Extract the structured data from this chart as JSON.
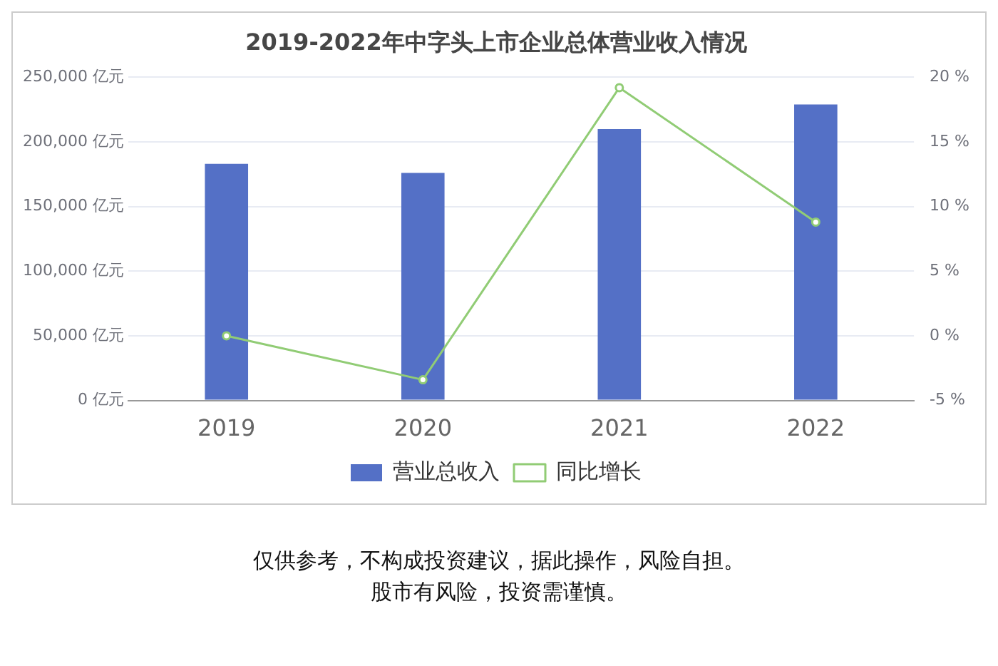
{
  "chart_data": {
    "type": "bar",
    "title": "2019-2022年中字头上市企业总体营业收入情况",
    "categories": [
      "2019",
      "2020",
      "2021",
      "2022"
    ],
    "series": [
      {
        "name": "营业总收入",
        "color": "#5470c6",
        "values": [
          183000,
          176000,
          210000,
          229000
        ]
      },
      {
        "name": "同比增长",
        "type": "line",
        "axis": "y2",
        "color": "#91cc75",
        "marker": "circle",
        "values": [
          0,
          -3.4,
          19.2,
          8.8
        ]
      }
    ],
    "ylim": [
      0,
      250000
    ],
    "yticks": [
      {
        "value": 0,
        "label": "0 亿元"
      },
      {
        "value": 50000,
        "label": "50,000 亿元"
      },
      {
        "value": 100000,
        "label": "100,000 亿元"
      },
      {
        "value": 150000,
        "label": "150,000 亿元"
      },
      {
        "value": 200000,
        "label": "200,000 亿元"
      },
      {
        "value": 250000,
        "label": "250,000 亿元"
      }
    ],
    "y2lim": [
      -5,
      20
    ],
    "y2ticks": [
      {
        "value": -5,
        "label": "-5 %"
      },
      {
        "value": 0,
        "label": "0 %"
      },
      {
        "value": 5,
        "label": "5 %"
      },
      {
        "value": 10,
        "label": "10 %"
      },
      {
        "value": 15,
        "label": "15 %"
      },
      {
        "value": 20,
        "label": "20 %"
      }
    ],
    "grid": "y",
    "legend": "bottom",
    "annotations": [
      "仅供参考，不构成投资建议，据此操作，风险自担。",
      "股市有风险，投资需谨慎。"
    ]
  }
}
